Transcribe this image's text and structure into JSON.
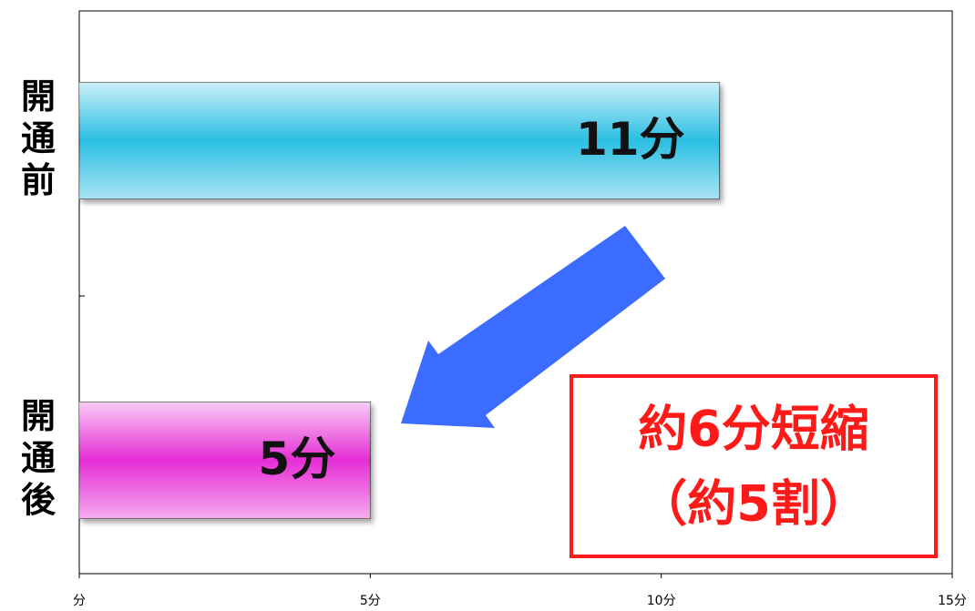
{
  "chart_data": {
    "type": "barh",
    "categories": [
      "開通前",
      "開通後"
    ],
    "values": [
      11,
      5
    ],
    "value_labels": [
      "11分",
      "5分"
    ],
    "colors": [
      "#2bbfe3",
      "#e62fd6"
    ],
    "xlim": [
      0,
      15
    ],
    "xticks": [
      {
        "value": 0,
        "label": "分"
      },
      {
        "value": 5,
        "label": "5分"
      },
      {
        "value": 10,
        "label": "10分"
      },
      {
        "value": 15,
        "label": "15分"
      }
    ],
    "annotations": [
      "約6分短縮",
      "（約5割）"
    ],
    "grid": false
  }
}
